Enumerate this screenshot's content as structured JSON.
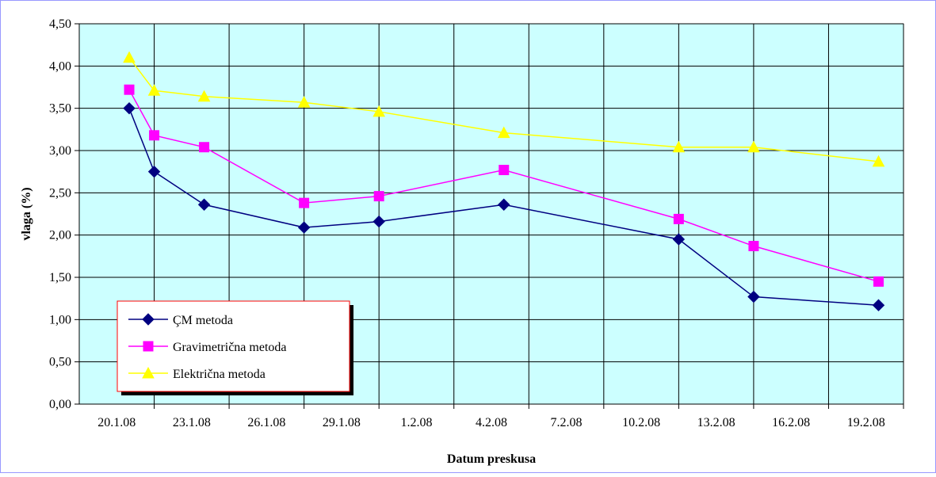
{
  "chart_data": {
    "type": "line",
    "xlabel": "Datum preskusa",
    "ylabel": "vlaga  (%)",
    "x_tick_labels": [
      "20.1.08",
      "23.1.08",
      "26.1.08",
      "29.1.08",
      "1.2.08",
      "4.2.08",
      "7.2.08",
      "10.2.08",
      "13.2.08",
      "16.2.08",
      "19.2.08"
    ],
    "y_tick_labels": [
      "0,00",
      "0,50",
      "1,00",
      "1,50",
      "2,00",
      "2,50",
      "3,00",
      "3,50",
      "4,00",
      "4,50"
    ],
    "ylim": [
      0,
      4.5
    ],
    "y_step": 0.5,
    "xlim": [
      "2008-01-19",
      "2008-02-21"
    ],
    "x_tick_step_days": 3,
    "grid": true,
    "legend_position": "bottom-left",
    "plot_background": "#ccffff",
    "series": [
      {
        "name": "ÇM metoda",
        "color": "#000080",
        "marker": "diamond",
        "points": [
          {
            "x": "2008-01-21",
            "y": 3.5
          },
          {
            "x": "2008-01-22",
            "y": 2.75
          },
          {
            "x": "2008-01-24",
            "y": 2.36
          },
          {
            "x": "2008-01-28",
            "y": 2.09
          },
          {
            "x": "2008-01-31",
            "y": 2.16
          },
          {
            "x": "2008-02-05",
            "y": 2.36
          },
          {
            "x": "2008-02-12",
            "y": 1.95
          },
          {
            "x": "2008-02-15",
            "y": 1.27
          },
          {
            "x": "2008-02-20",
            "y": 1.17
          }
        ]
      },
      {
        "name": "Gravimetrična metoda",
        "color": "#ff00ff",
        "marker": "square",
        "points": [
          {
            "x": "2008-01-21",
            "y": 3.72
          },
          {
            "x": "2008-01-22",
            "y": 3.18
          },
          {
            "x": "2008-01-24",
            "y": 3.04
          },
          {
            "x": "2008-01-28",
            "y": 2.38
          },
          {
            "x": "2008-01-31",
            "y": 2.46
          },
          {
            "x": "2008-02-05",
            "y": 2.77
          },
          {
            "x": "2008-02-12",
            "y": 2.19
          },
          {
            "x": "2008-02-15",
            "y": 1.87
          },
          {
            "x": "2008-02-20",
            "y": 1.45
          }
        ]
      },
      {
        "name": "Električna metoda",
        "color": "#ffff00",
        "marker": "triangle",
        "points": [
          {
            "x": "2008-01-21",
            "y": 4.1
          },
          {
            "x": "2008-01-22",
            "y": 3.71
          },
          {
            "x": "2008-01-24",
            "y": 3.64
          },
          {
            "x": "2008-01-28",
            "y": 3.57
          },
          {
            "x": "2008-01-31",
            "y": 3.46
          },
          {
            "x": "2008-02-05",
            "y": 3.21
          },
          {
            "x": "2008-02-12",
            "y": 3.04
          },
          {
            "x": "2008-02-15",
            "y": 3.04
          },
          {
            "x": "2008-02-20",
            "y": 2.87
          }
        ]
      }
    ]
  }
}
